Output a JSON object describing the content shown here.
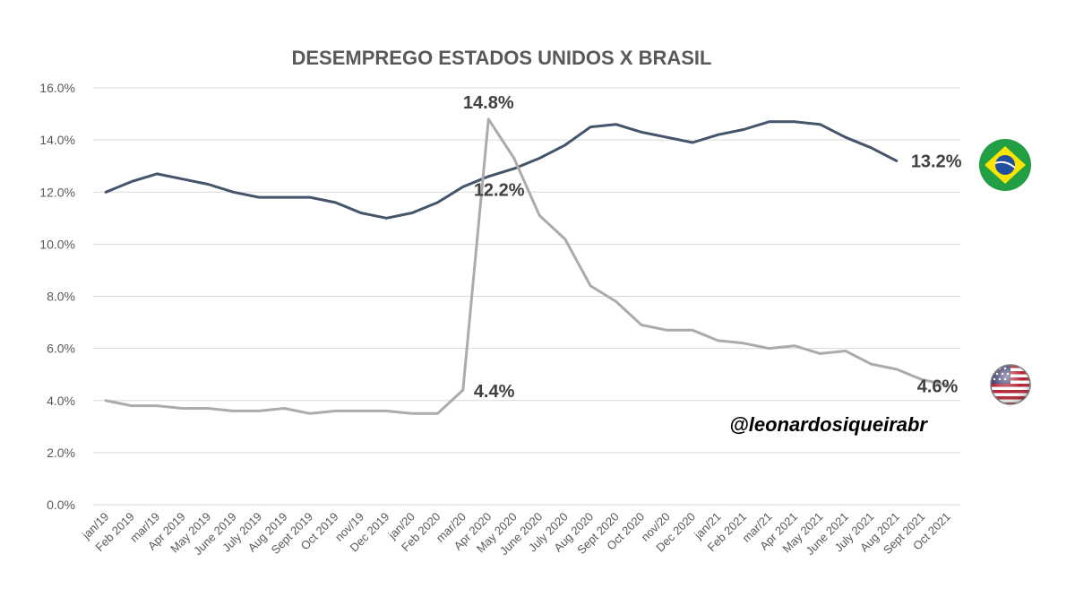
{
  "chart_data": {
    "type": "line",
    "title": "DESEMPREGO ESTADOS UNIDOS X BRASIL",
    "xlabel": "",
    "ylabel": "",
    "ylim": [
      0,
      16
    ],
    "y_ticks": [
      "0.0%",
      "2.0%",
      "4.0%",
      "6.0%",
      "8.0%",
      "10.0%",
      "12.0%",
      "14.0%",
      "16.0%"
    ],
    "grid": "horizontal",
    "categories": [
      "jan/19",
      "Feb 2019",
      "mar/19",
      "Apr 2019",
      "May 2019",
      "June 2019",
      "July 2019",
      "Aug 2019",
      "Sept 2019",
      "Oct 2019",
      "nov/19",
      "Dec 2019",
      "jan/20",
      "Feb 2020",
      "mar/20",
      "Apr 2020",
      "May 2020",
      "June 2020",
      "July 2020",
      "Aug 2020",
      "Sept 2020",
      "Oct 2020",
      "nov/20",
      "Dec 2020",
      "jan/21",
      "Feb 2021",
      "mar/21",
      "Apr 2021",
      "May 2021",
      "June 2021",
      "July 2021",
      "Aug 2021",
      "Sept 2021",
      "Oct 2021"
    ],
    "series": [
      {
        "name": "",
        "color": "#44546a",
        "flag": "brazil-flag",
        "values": [
          12.0,
          12.4,
          12.7,
          12.5,
          12.3,
          12.0,
          11.8,
          11.8,
          11.8,
          11.6,
          11.2,
          11.0,
          11.2,
          11.6,
          12.2,
          12.6,
          12.9,
          13.3,
          13.8,
          14.5,
          14.6,
          14.3,
          14.1,
          13.9,
          14.2,
          14.4,
          14.7,
          14.7,
          14.6,
          14.1,
          13.7,
          13.2,
          null,
          null
        ]
      },
      {
        "name": "",
        "color": "#aeaaaa",
        "flag": "usa-flag",
        "values": [
          4.0,
          3.8,
          3.8,
          3.7,
          3.7,
          3.6,
          3.6,
          3.7,
          3.5,
          3.6,
          3.6,
          3.6,
          3.5,
          3.5,
          4.4,
          14.8,
          13.3,
          11.1,
          10.2,
          8.4,
          7.8,
          6.9,
          6.7,
          6.7,
          6.3,
          6.2,
          6.0,
          6.1,
          5.8,
          5.9,
          5.4,
          5.2,
          4.8,
          4.6
        ]
      }
    ],
    "annotations": [
      {
        "text": "14.8%",
        "series": 1,
        "index": 15
      },
      {
        "text": "12.2%",
        "series": 0,
        "index": 14
      },
      {
        "text": "4.4%",
        "series": 1,
        "index": 14
      },
      {
        "text": "13.2%",
        "series": 0,
        "index": 31
      },
      {
        "text": "4.6%",
        "series": 1,
        "index": 33
      }
    ],
    "watermark": "@leonardosiqueirabr"
  }
}
